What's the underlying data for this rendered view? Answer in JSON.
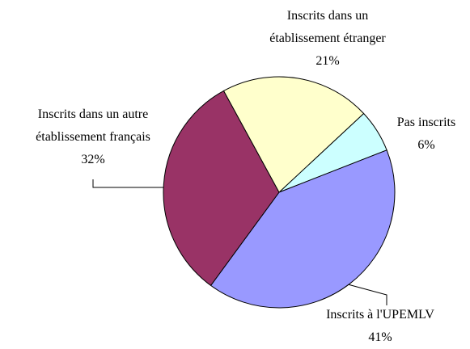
{
  "chart_data": {
    "type": "pie",
    "categories": [
      "Pas inscrits",
      "Inscrits à l'UPEMLV",
      "Inscrits dans un autre établissement français",
      "Inscrits dans un établissement étranger"
    ],
    "values": [
      6,
      41,
      32,
      21
    ],
    "value_labels": [
      "6%",
      "41%",
      "32%",
      "21%"
    ],
    "colors": [
      "#ccffff",
      "#9999ff",
      "#993366",
      "#ffffcc"
    ]
  }
}
